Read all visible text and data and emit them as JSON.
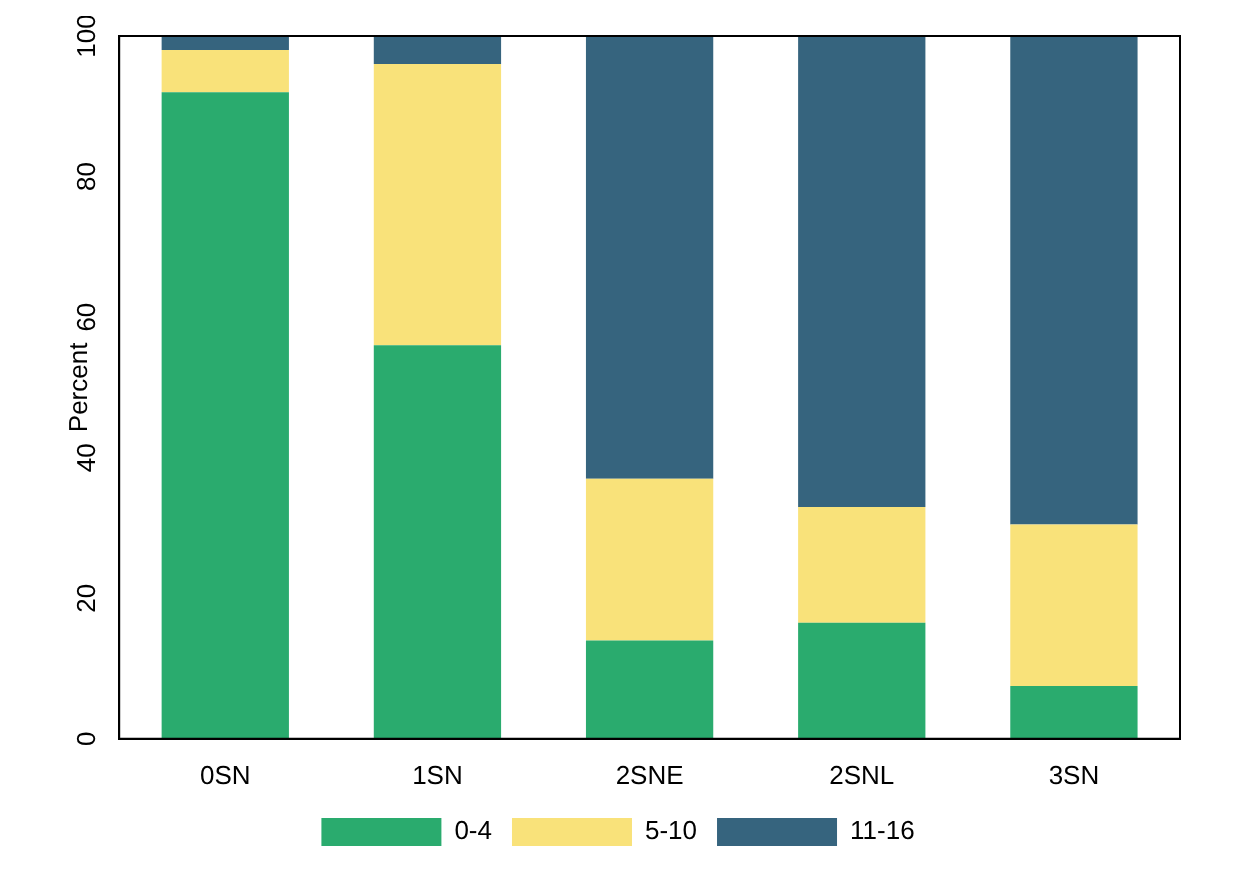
{
  "chart_data": {
    "type": "bar",
    "stacked": true,
    "ylabel": "Percent",
    "categories": [
      "0SN",
      "1SN",
      "2SNE",
      "2SNL",
      "3SN"
    ],
    "series": [
      {
        "name": "0-4",
        "color": "#2aab6e",
        "values": [
          92,
          56,
          14,
          16.5,
          7.5
        ]
      },
      {
        "name": "5-10",
        "color": "#f9e27a",
        "values": [
          6,
          40,
          23,
          16.5,
          23
        ]
      },
      {
        "name": "11-16",
        "color": "#36647e",
        "values": [
          2,
          4,
          63,
          67,
          69.5
        ]
      }
    ],
    "ylim": [
      0,
      100
    ],
    "yticks": [
      0,
      20,
      40,
      60,
      80,
      100
    ],
    "grid": false,
    "legend": "bottom"
  }
}
